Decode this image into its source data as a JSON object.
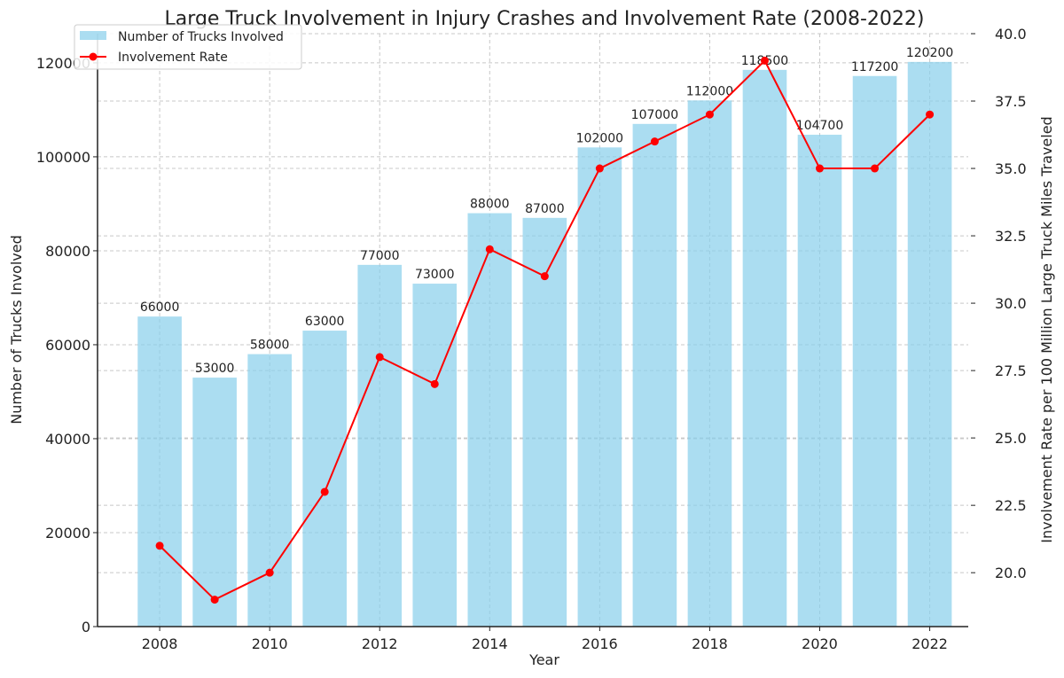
{
  "chart_data": {
    "type": "bar+line",
    "title": "Large Truck Involvement in Injury Crashes and Involvement Rate (2008-2022)",
    "xlabel": "Year",
    "ylabel_left": "Number of Trucks Involved",
    "ylabel_right": "Involvement Rate per 100 Million Large Truck Miles Traveled",
    "categories": [
      2008,
      2009,
      2010,
      2011,
      2012,
      2013,
      2014,
      2015,
      2016,
      2017,
      2018,
      2019,
      2020,
      2021,
      2022
    ],
    "x_ticks": [
      "2008",
      "2010",
      "2012",
      "2014",
      "2016",
      "2018",
      "2020",
      "2022"
    ],
    "series": [
      {
        "name": "Number of Trucks Involved",
        "kind": "bar",
        "axis": "left",
        "color": "#87CEEB",
        "values": [
          66000,
          53000,
          58000,
          63000,
          77000,
          73000,
          88000,
          87000,
          102000,
          107000,
          112000,
          118500,
          104700,
          117200,
          120200
        ]
      },
      {
        "name": "Involvement Rate",
        "kind": "line",
        "axis": "right",
        "color": "#FF0000",
        "values": [
          21,
          19,
          20,
          23,
          28,
          27,
          32,
          31,
          35,
          36,
          37,
          39,
          35,
          35,
          37
        ]
      }
    ],
    "ylim_left": [
      0,
      126210
    ],
    "yticks_left": [
      "0",
      "20000",
      "40000",
      "60000",
      "80000",
      "100000",
      "120000"
    ],
    "ylim_right": [
      18,
      40
    ],
    "yticks_right": [
      "20.0",
      "22.5",
      "25.0",
      "27.5",
      "30.0",
      "32.5",
      "35.0",
      "37.5",
      "40.0"
    ],
    "grid": true,
    "legend": "top-left"
  }
}
